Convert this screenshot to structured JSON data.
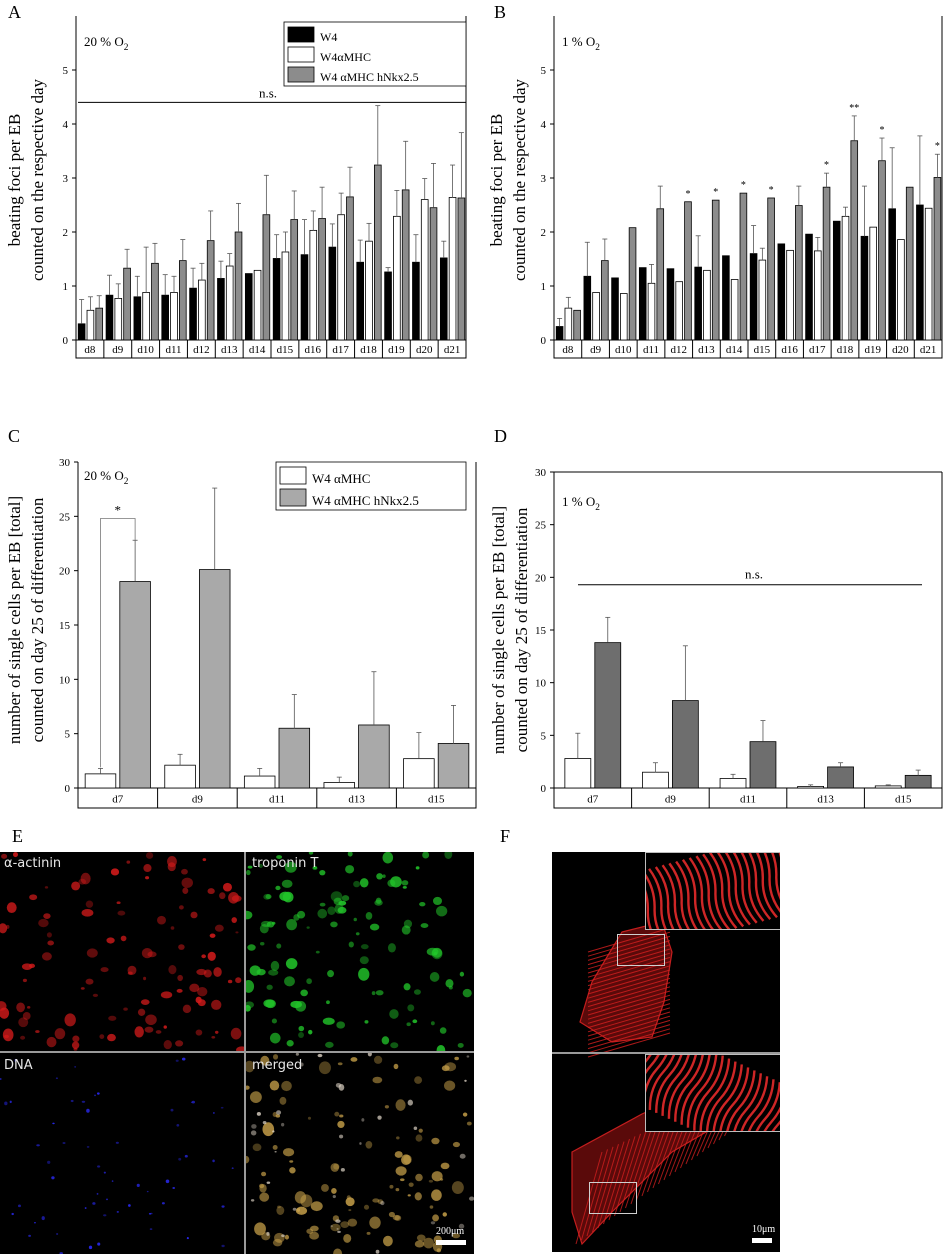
{
  "panels": {
    "A": {
      "letter": "A",
      "condition": "20 % O",
      "condition_sub": "2",
      "ylabel_lines": [
        "beating foci per EB",
        "counted on the respective day"
      ],
      "significance": "n.s."
    },
    "B": {
      "letter": "B",
      "condition": "1 % O",
      "condition_sub": "2",
      "ylabel_lines": [
        "beating foci per EB",
        "counted on the respective day"
      ]
    },
    "C": {
      "letter": "C",
      "condition": "20 % O",
      "condition_sub": "2",
      "ylabel_lines": [
        "number of single cells per EB [total]",
        "counted on day 25 of differentiation"
      ],
      "significance_star": "*"
    },
    "D": {
      "letter": "D",
      "condition": "1 % O",
      "condition_sub": "2",
      "ylabel_lines": [
        "number of single cells per EB [total]",
        "counted on day 25 of differentiation"
      ],
      "significance": "n.s."
    },
    "E": {
      "letter": "E",
      "labels": [
        "α-actinin",
        "troponin T",
        "DNA",
        "merged"
      ],
      "scale": "200μm"
    },
    "F": {
      "letter": "F",
      "scale": "10μm"
    }
  },
  "colors": {
    "W4": "#000000",
    "W4aMHC": "#ffffff",
    "W4aMHC_hNkx25_AB": "#8c8c8c",
    "W4aMHC_hNkx25_C": "#a9a9a9",
    "W4aMHC_hNkx25_D": "#6e6e6e",
    "actinin": "#d11a1a",
    "troponin": "#22c62a",
    "dna": "#2b2bff"
  },
  "chart_data": [
    {
      "panel": "A",
      "type": "bar",
      "categories": [
        "d8",
        "d9",
        "d10",
        "d11",
        "d12",
        "d13",
        "d14",
        "d15",
        "d16",
        "d17",
        "d18",
        "d19",
        "d20",
        "d21"
      ],
      "ylim": [
        0,
        6
      ],
      "yticks": [
        0,
        1,
        2,
        3,
        4,
        5
      ],
      "legend": {
        "placement": "top-right",
        "entries": [
          "W4",
          "W4αMHC",
          "W4 αMHC hNkx2.5"
        ]
      },
      "series": [
        {
          "name": "W4",
          "values": [
            0.3,
            0.83,
            0.8,
            0.83,
            0.96,
            1.14,
            1.23,
            1.51,
            1.58,
            1.72,
            1.44,
            1.26,
            1.44,
            1.52
          ],
          "errors": [
            0.45,
            0.37,
            0.38,
            0.38,
            0.37,
            0.32,
            0.0,
            0.44,
            0.65,
            0.43,
            0.41,
            0.08,
            0.51,
            0.31
          ]
        },
        {
          "name": "W4αMHC",
          "values": [
            0.55,
            0.77,
            0.88,
            0.88,
            1.11,
            1.37,
            1.29,
            1.63,
            2.03,
            2.32,
            1.83,
            2.29,
            2.6,
            2.64
          ],
          "errors": [
            0.25,
            0.27,
            0.84,
            0.3,
            0.31,
            0.23,
            0.0,
            0.37,
            0.36,
            0.4,
            0.33,
            0.48,
            0.39,
            0.6
          ]
        },
        {
          "name": "W4 αMHC hNkx2.5",
          "values": [
            0.59,
            1.33,
            1.42,
            1.47,
            1.84,
            2.0,
            2.32,
            2.23,
            2.25,
            2.65,
            3.24,
            2.78,
            2.45,
            2.63
          ],
          "errors": [
            0.23,
            0.35,
            0.37,
            0.39,
            0.55,
            0.53,
            0.73,
            0.53,
            0.58,
            0.55,
            1.1,
            0.9,
            0.82,
            1.21
          ]
        }
      ]
    },
    {
      "panel": "B",
      "type": "bar",
      "categories": [
        "d8",
        "d9",
        "d10",
        "d11",
        "d12",
        "d13",
        "d14",
        "d15",
        "d16",
        "d17",
        "d18",
        "d19",
        "d20",
        "d21"
      ],
      "ylim": [
        0,
        6
      ],
      "yticks": [
        0,
        1,
        2,
        3,
        4,
        5
      ],
      "annotations": [
        "",
        "",
        "",
        "",
        "*",
        "*",
        "*",
        "*",
        "",
        "*",
        "**",
        "*",
        "",
        "*"
      ],
      "series": [
        {
          "name": "W4",
          "values": [
            0.25,
            1.18,
            1.15,
            1.34,
            1.32,
            1.35,
            1.56,
            1.6,
            1.78,
            1.96,
            2.2,
            1.92,
            2.43,
            2.5
          ],
          "errors": [
            0.15,
            0.63,
            0.0,
            0.0,
            0.0,
            0.58,
            0.0,
            0.52,
            0.0,
            0.0,
            0.0,
            0.93,
            1.13,
            1.28
          ]
        },
        {
          "name": "W4αMHC",
          "values": [
            0.59,
            0.88,
            0.86,
            1.05,
            1.08,
            1.29,
            1.12,
            1.48,
            1.66,
            1.65,
            2.29,
            2.09,
            1.86,
            2.44
          ],
          "errors": [
            0.2,
            0.0,
            0.0,
            0.35,
            0.0,
            0.0,
            0.0,
            0.22,
            0.0,
            0.25,
            0.17,
            0.0,
            0.0,
            0.0
          ]
        },
        {
          "name": "W4 αMHC hNkx2.5",
          "values": [
            0.55,
            1.47,
            2.08,
            2.43,
            2.56,
            2.59,
            2.72,
            2.63,
            2.49,
            2.83,
            3.69,
            3.32,
            2.83,
            3.01
          ],
          "errors": [
            0.0,
            0.4,
            0.0,
            0.42,
            0.0,
            0.0,
            0.0,
            0.0,
            0.36,
            0.26,
            0.46,
            0.42,
            0.0,
            0.43
          ]
        }
      ]
    },
    {
      "panel": "C",
      "type": "bar",
      "categories": [
        "d7",
        "d9",
        "d11",
        "d13",
        "d15"
      ],
      "ylim": [
        0,
        30
      ],
      "yticks": [
        0,
        5,
        10,
        15,
        20,
        25,
        30
      ],
      "legend": {
        "placement": "top-right",
        "entries": [
          "W4  αMHC",
          "W4  αMHC hNkx2.5"
        ]
      },
      "series": [
        {
          "name": "W4  αMHC",
          "values": [
            1.3,
            2.1,
            1.1,
            0.5,
            2.7
          ],
          "errors": [
            0.5,
            1.0,
            0.7,
            0.5,
            2.4
          ]
        },
        {
          "name": "W4  αMHC hNkx2.5",
          "values": [
            19.0,
            20.1,
            5.5,
            5.8,
            4.1
          ],
          "errors": [
            3.8,
            7.5,
            3.1,
            4.9,
            3.5
          ]
        }
      ]
    },
    {
      "panel": "D",
      "type": "bar",
      "categories": [
        "d7",
        "d9",
        "d11",
        "d13",
        "d15"
      ],
      "ylim": [
        0,
        30
      ],
      "yticks": [
        0,
        5,
        10,
        15,
        20,
        25,
        30
      ],
      "series": [
        {
          "name": "W4  αMHC",
          "values": [
            2.8,
            1.5,
            0.9,
            0.15,
            0.2
          ],
          "errors": [
            2.4,
            0.9,
            0.4,
            0.15,
            0.1
          ]
        },
        {
          "name": "W4  αMHC hNkx2.5",
          "values": [
            13.8,
            8.3,
            4.4,
            2.0,
            1.2
          ],
          "errors": [
            2.4,
            5.2,
            2.0,
            0.4,
            0.5
          ]
        }
      ]
    }
  ]
}
